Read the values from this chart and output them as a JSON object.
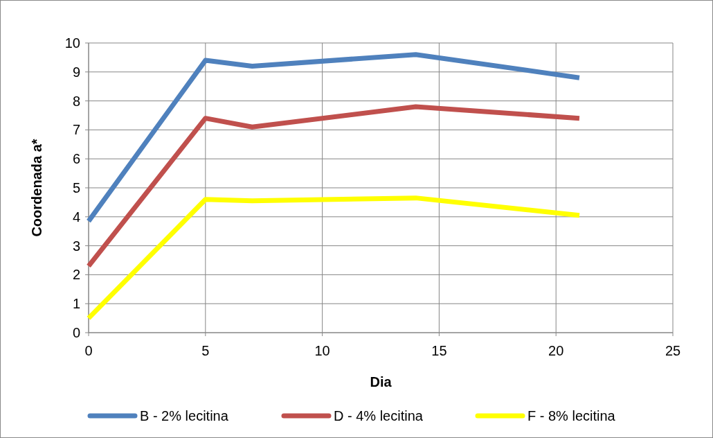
{
  "chart_data": {
    "type": "line",
    "xlabel": "Dia",
    "ylabel": "Coordenada a*",
    "x": [
      0,
      5,
      7,
      14,
      21
    ],
    "series": [
      {
        "name": "B - 2% lecitina",
        "color": "#4f81bd",
        "values": [
          3.85,
          9.4,
          9.2,
          9.6,
          8.8
        ]
      },
      {
        "name": "D - 4% lecitina",
        "color": "#c0504d",
        "values": [
          2.3,
          7.4,
          7.1,
          7.8,
          7.4
        ]
      },
      {
        "name": "F - 8% lecitina",
        "color": "#ffff00",
        "values": [
          0.5,
          4.6,
          4.55,
          4.65,
          4.05
        ]
      }
    ],
    "xlim": [
      0,
      25
    ],
    "xticks": [
      0,
      5,
      10,
      15,
      20,
      25
    ],
    "ylim": [
      0,
      10
    ],
    "yticks": [
      0,
      1,
      2,
      3,
      4,
      5,
      6,
      7,
      8,
      9,
      10
    ],
    "grid": true,
    "legend": "bottom",
    "marker": "none",
    "line_style": "solid"
  }
}
